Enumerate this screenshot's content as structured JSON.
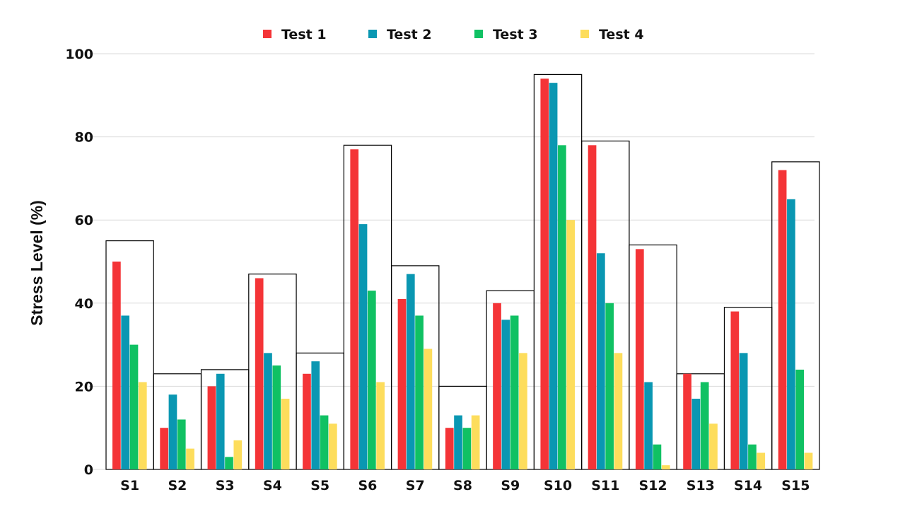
{
  "chart_data": {
    "type": "bar",
    "title": "",
    "xlabel": "",
    "ylabel": "Stress Level (%)",
    "ylim": [
      0,
      100
    ],
    "yticks": [
      0,
      20,
      40,
      60,
      80,
      100
    ],
    "grid": true,
    "legend_position": "top-center",
    "categories": [
      "S1",
      "S2",
      "S3",
      "S4",
      "S5",
      "S6",
      "S7",
      "S8",
      "S9",
      "S10",
      "S11",
      "S12",
      "S13",
      "S14",
      "S15"
    ],
    "series": [
      {
        "name": "Test 1",
        "color": "#f43437",
        "values": [
          50,
          10,
          20,
          46,
          23,
          77,
          41,
          10,
          40,
          94,
          78,
          53,
          23,
          38,
          72
        ]
      },
      {
        "name": "Test 2",
        "color": "#0a97b2",
        "values": [
          37,
          18,
          23,
          28,
          26,
          59,
          47,
          13,
          36,
          93,
          52,
          21,
          17,
          28,
          65
        ]
      },
      {
        "name": "Test 3",
        "color": "#10c163",
        "values": [
          30,
          12,
          3,
          25,
          13,
          43,
          37,
          10,
          37,
          78,
          40,
          6,
          21,
          6,
          24
        ]
      },
      {
        "name": "Test 4",
        "color": "#fddd5c",
        "values": [
          21,
          5,
          7,
          17,
          11,
          21,
          29,
          13,
          28,
          60,
          28,
          1,
          11,
          4,
          4
        ]
      }
    ],
    "group_box_tops": [
      55,
      23,
      24,
      47,
      28,
      78,
      49,
      20,
      43,
      95,
      79,
      54,
      23,
      39,
      74
    ]
  }
}
